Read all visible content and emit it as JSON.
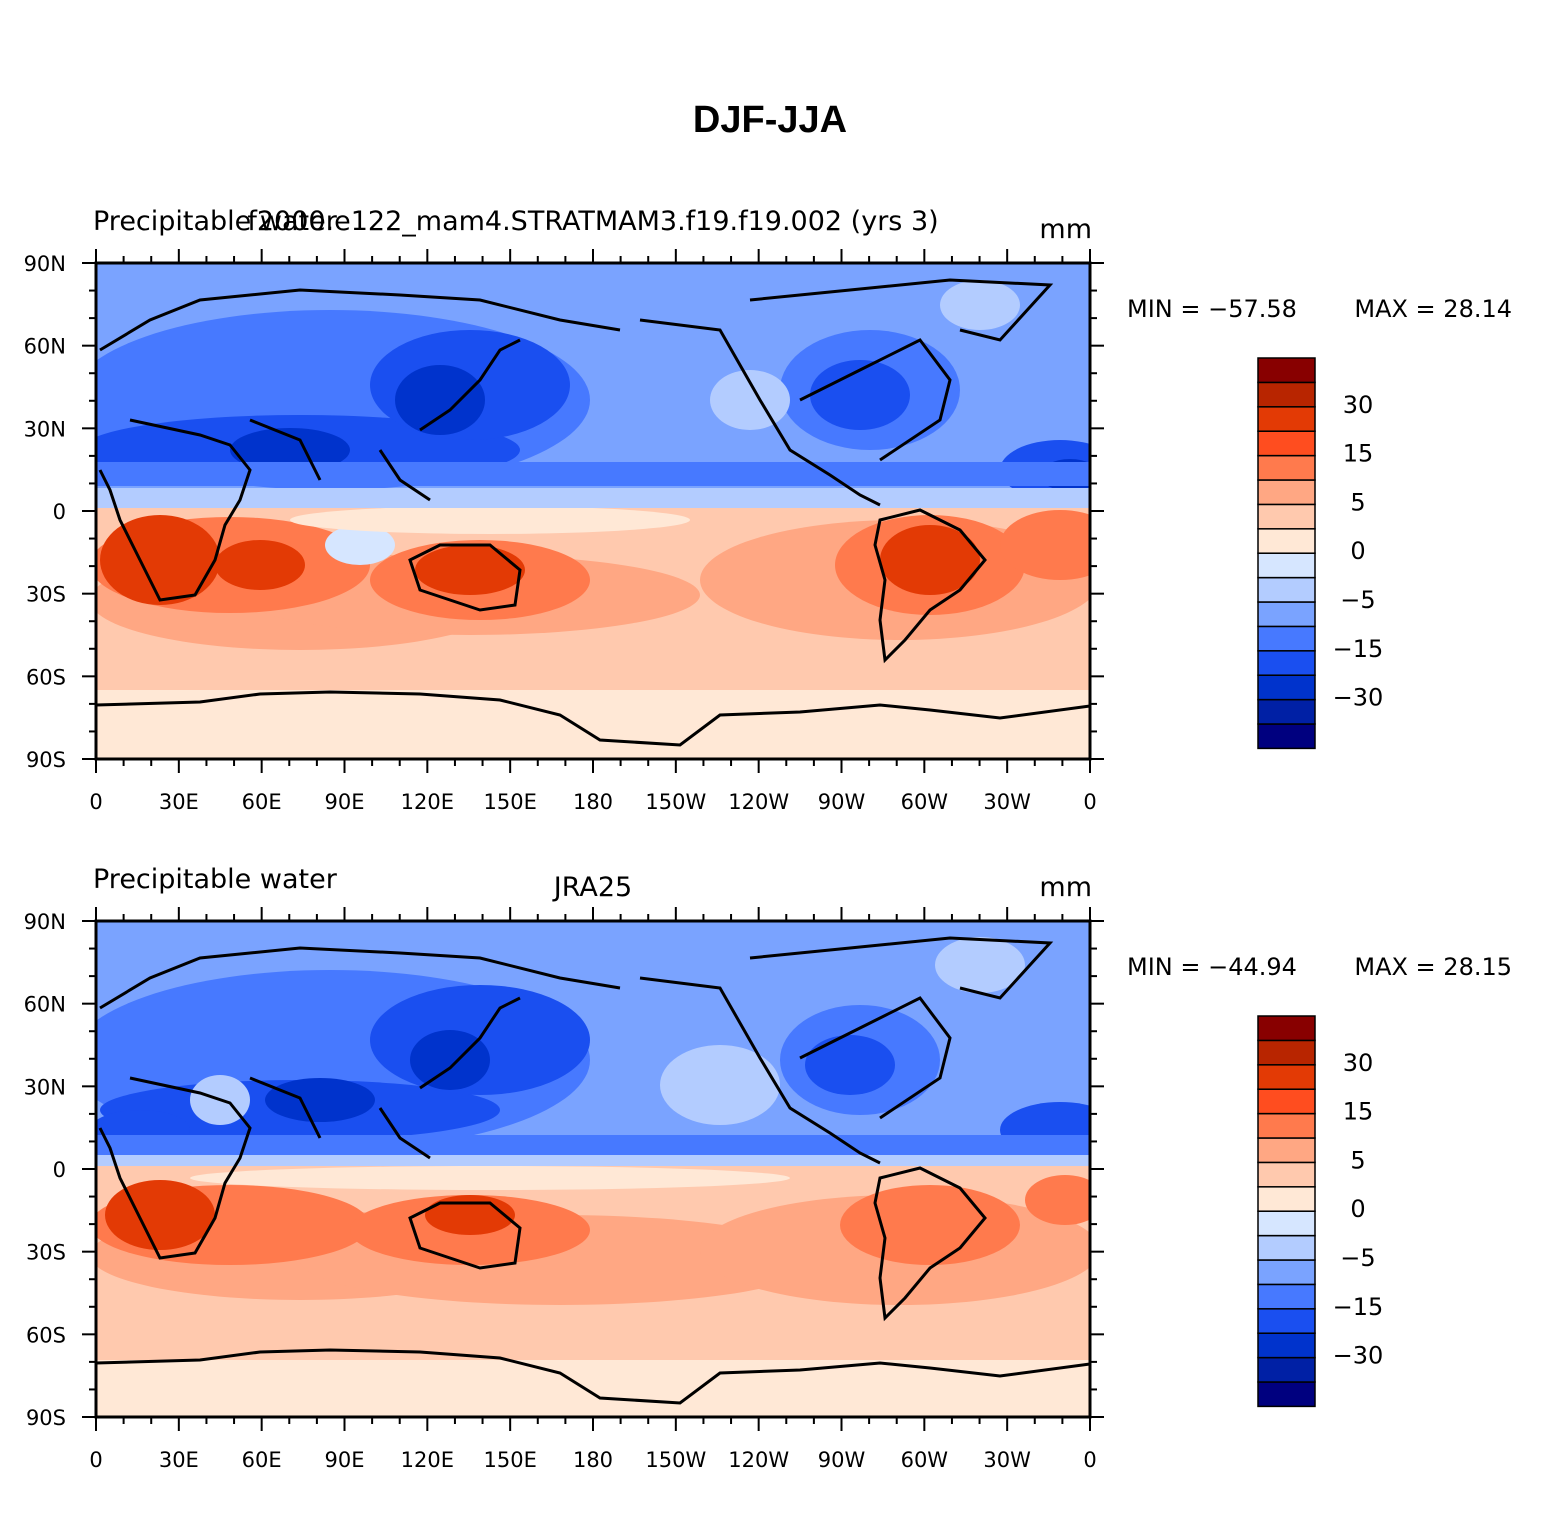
{
  "title": "DJF-JJA",
  "colors": [
    "#00007f",
    "#0020a5",
    "#0033cc",
    "#1a4ff0",
    "#4779ff",
    "#7aa3ff",
    "#b3ccff",
    "#d6e6ff",
    "#ffe8d6",
    "#ffc9ae",
    "#ffa783",
    "#ff7a4d",
    "#ff4d1f",
    "#e33a05",
    "#b82500",
    "#880000"
  ],
  "panels": [
    {
      "left_label": "Precipitable water",
      "center_label": "f2000.e122_mam4.STRATMAM3.f19.f19.002 (yrs 3)",
      "right_label": "mm",
      "min_label": "MIN = −57.58",
      "max_label": "MAX =   28.14"
    },
    {
      "left_label": "Precipitable water",
      "center_label": "JRA25",
      "right_label": "mm",
      "min_label": "MIN = −44.94",
      "max_label": "MAX =   28.15"
    }
  ],
  "lat_labels": [
    "90N",
    "60N",
    "30N",
    "0",
    "30S",
    "60S",
    "90S"
  ],
  "lon_labels": [
    "0",
    "30E",
    "60E",
    "90E",
    "120E",
    "150E",
    "180",
    "150W",
    "120W",
    "90W",
    "60W",
    "30W",
    "0"
  ],
  "colorbar_labels": [
    "30",
    "15",
    "5",
    "0",
    "−5",
    "−15",
    "−30"
  ]
}
